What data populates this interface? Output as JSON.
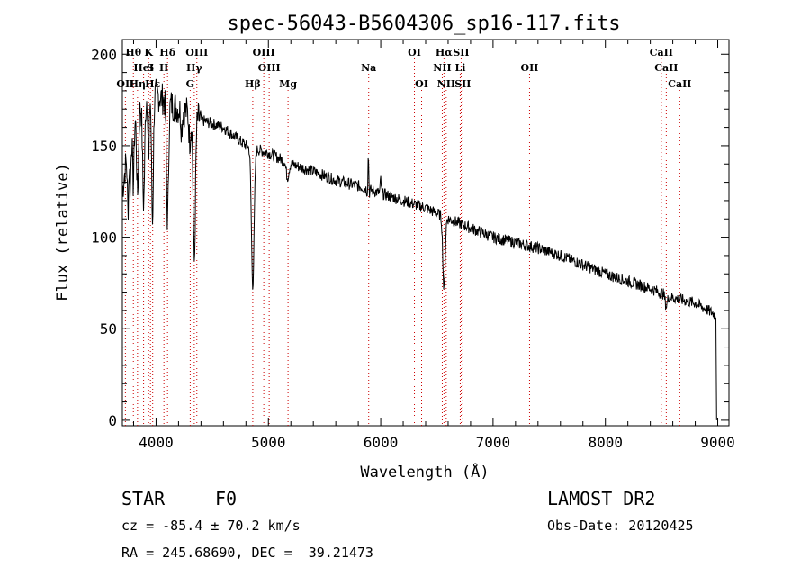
{
  "chart_data": {
    "type": "line",
    "title": "spec-56043-B5604306_sp16-117.fits",
    "xlabel": "Wavelength (Å)",
    "ylabel": "Flux (relative)",
    "xlim": [
      3700,
      9100
    ],
    "ylim": [
      -3,
      208
    ],
    "xticks": [
      4000,
      5000,
      6000,
      7000,
      8000,
      9000
    ],
    "yticks": [
      0,
      50,
      100,
      150,
      200
    ],
    "grid": false,
    "line_color": "#000000",
    "marker_color": "#cc0000",
    "series": [
      {
        "anchors": [
          [
            3700,
            125
          ],
          [
            3720,
            135
          ],
          [
            3750,
            150
          ],
          [
            3780,
            160
          ],
          [
            3800,
            165
          ],
          [
            3850,
            170
          ],
          [
            3900,
            175
          ],
          [
            3950,
            178
          ],
          [
            4000,
            178
          ],
          [
            4050,
            176
          ],
          [
            4100,
            174
          ],
          [
            4200,
            170
          ],
          [
            4300,
            168
          ],
          [
            4400,
            164
          ],
          [
            4500,
            162
          ],
          [
            4600,
            160
          ],
          [
            4700,
            155
          ],
          [
            4800,
            150
          ],
          [
            4900,
            148
          ],
          [
            5000,
            146
          ],
          [
            5200,
            140
          ],
          [
            5400,
            136
          ],
          [
            5600,
            131
          ],
          [
            5800,
            128
          ],
          [
            6000,
            124
          ],
          [
            6200,
            120
          ],
          [
            6400,
            116
          ],
          [
            6600,
            110
          ],
          [
            6800,
            105
          ],
          [
            7000,
            100
          ],
          [
            7200,
            97
          ],
          [
            7400,
            94
          ],
          [
            7600,
            90
          ],
          [
            7800,
            85
          ],
          [
            8000,
            80
          ],
          [
            8200,
            76
          ],
          [
            8400,
            72
          ],
          [
            8600,
            67
          ],
          [
            8800,
            64
          ],
          [
            8970,
            58
          ]
        ],
        "absorption": [
          [
            3750,
            35,
            6
          ],
          [
            3770,
            30,
            6
          ],
          [
            3797,
            35,
            7
          ],
          [
            3835,
            45,
            8
          ],
          [
            3889,
            55,
            9
          ],
          [
            3934,
            40,
            5
          ],
          [
            3968,
            70,
            8
          ],
          [
            4102,
            65,
            9
          ],
          [
            4227,
            10,
            6
          ],
          [
            4300,
            15,
            8
          ],
          [
            4340,
            80,
            10
          ],
          [
            4861,
            75,
            12
          ],
          [
            5170,
            8,
            12
          ],
          [
            5890,
            6,
            8
          ],
          [
            6563,
            40,
            10
          ],
          [
            8542,
            6,
            10
          ]
        ],
        "emission": [
          [
            5890,
            25,
            4
          ],
          [
            6000,
            8,
            4
          ]
        ],
        "end_drop": [
          [
            8990,
            0
          ]
        ]
      }
    ],
    "line_markers": [
      {
        "label": "Hθ",
        "wl": 3798,
        "row": 1
      },
      {
        "label": "K",
        "wl": 3934,
        "row": 1
      },
      {
        "label": "Hδ",
        "wl": 4102,
        "row": 1
      },
      {
        "label": "OIII",
        "wl": 4363,
        "row": 1
      },
      {
        "label": "OIII",
        "wl": 4959,
        "row": 1
      },
      {
        "label": "OI",
        "wl": 6300,
        "row": 1
      },
      {
        "label": "Hα",
        "wl": 6563,
        "row": 1
      },
      {
        "label": "SII",
        "wl": 6716,
        "row": 1
      },
      {
        "label": "CaII",
        "wl": 8498,
        "row": 1
      },
      {
        "label": "HeI",
        "wl": 3889,
        "row": 2
      },
      {
        "label": "S",
        "wl": 3950,
        "row": 2
      },
      {
        "label": "II",
        "wl": 4070,
        "row": 2
      },
      {
        "label": "Hγ",
        "wl": 4340,
        "row": 2
      },
      {
        "label": "OIII",
        "wl": 5007,
        "row": 2
      },
      {
        "label": "Na",
        "wl": 5893,
        "row": 2
      },
      {
        "label": "NII",
        "wl": 6548,
        "row": 2
      },
      {
        "label": "Li",
        "wl": 6708,
        "row": 2
      },
      {
        "label": "OII",
        "wl": 7325,
        "row": 2
      },
      {
        "label": "CaII",
        "wl": 8542,
        "row": 2
      },
      {
        "label": "OII",
        "wl": 3727,
        "row": 3
      },
      {
        "label": "Hη",
        "wl": 3835,
        "row": 3
      },
      {
        "label": "Hε",
        "wl": 3970,
        "row": 3
      },
      {
        "label": "G",
        "wl": 4304,
        "row": 3
      },
      {
        "label": "Hβ",
        "wl": 4861,
        "row": 3
      },
      {
        "label": "Mg",
        "wl": 5175,
        "row": 3
      },
      {
        "label": "OI",
        "wl": 6364,
        "row": 3
      },
      {
        "label": "NII",
        "wl": 6583,
        "row": 3
      },
      {
        "label": "SII",
        "wl": 6731,
        "row": 3
      },
      {
        "label": "CaII",
        "wl": 8662,
        "row": 3
      }
    ]
  },
  "info": {
    "object_class": "STAR",
    "subclass": "F0",
    "survey": "LAMOST DR2",
    "cz": "cz = -85.4 ± 70.2 km/s",
    "obs_date": "Obs-Date: 20120425",
    "coords": "RA = 245.68690, DEC =  39.21473"
  }
}
